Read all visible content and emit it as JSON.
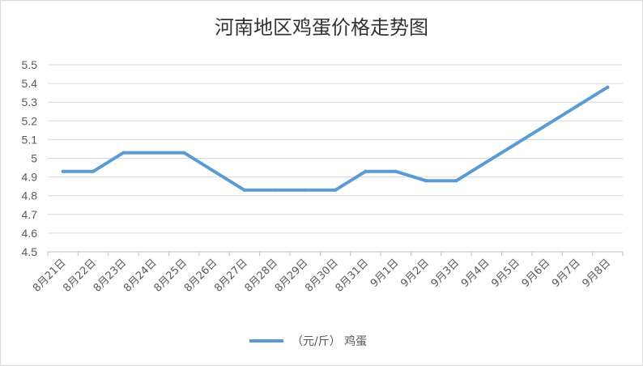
{
  "chart_data": {
    "type": "line",
    "title": "河南地区鸡蛋价格走势图",
    "xlabel": "",
    "ylabel": "",
    "categories": [
      "8月21日",
      "8月22日",
      "8月23日",
      "8月24日",
      "8月25日",
      "8月26日",
      "8月27日",
      "8月28日",
      "8月29日",
      "8月30日",
      "8月31日",
      "9月1日",
      "9月2日",
      "9月3日",
      "9月4日",
      "9月5日",
      "9月6日",
      "9月7日",
      "9月8日"
    ],
    "series": [
      {
        "name": "（元/斤） 鸡蛋",
        "color": "#5b9bd5",
        "values": [
          4.93,
          4.93,
          5.03,
          5.03,
          5.03,
          4.93,
          4.83,
          4.83,
          4.83,
          4.83,
          4.93,
          4.93,
          4.88,
          4.88,
          4.98,
          5.08,
          5.18,
          5.28,
          5.38
        ]
      }
    ],
    "ylim": [
      4.5,
      5.5
    ],
    "yticks": [
      "4.5",
      "4.6",
      "4.7",
      "4.8",
      "4.9",
      "5",
      "5.1",
      "5.2",
      "5.3",
      "5.4",
      "5.5"
    ],
    "grid": true,
    "legend": "bottom"
  }
}
